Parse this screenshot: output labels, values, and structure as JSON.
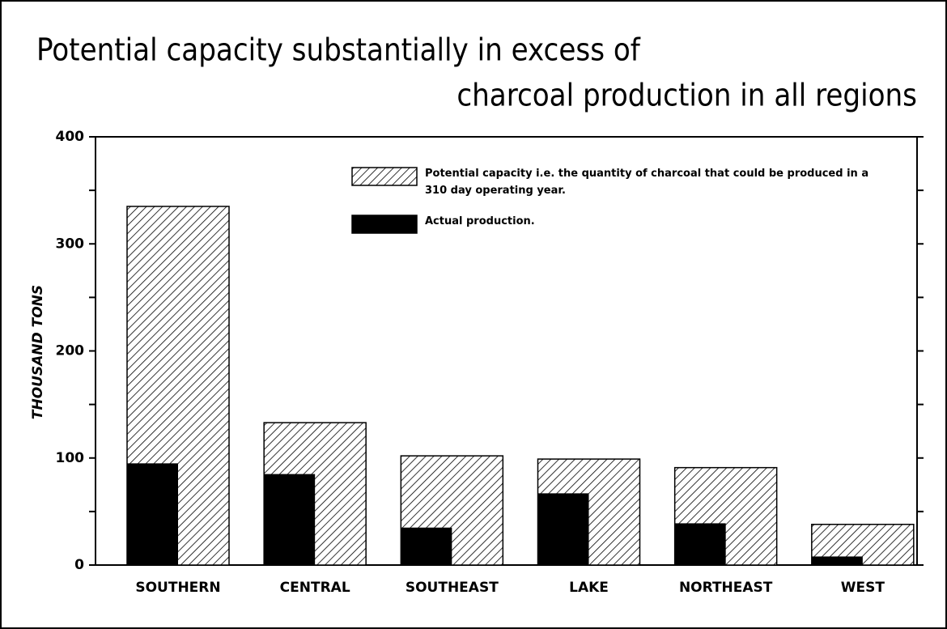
{
  "chart_data": {
    "type": "bar",
    "title": [
      "Potential capacity substantially in excess of",
      "charcoal production in all regions"
    ],
    "ylabel": "THOUSAND TONS",
    "categories": [
      "SOUTHERN",
      "CENTRAL",
      "SOUTHEAST",
      "LAKE",
      "NORTHEAST",
      "WEST"
    ],
    "series": [
      {
        "name": "Potential capacity i.e. the quantity of charcoal that could be produced in a 310 day operating year.",
        "color": "#000000",
        "hatch": true,
        "values": [
          335,
          133,
          102,
          99,
          91,
          38
        ]
      },
      {
        "name": "Actual production.",
        "color": "#000000",
        "hatch": false,
        "values": [
          95,
          85,
          35,
          67,
          39,
          8
        ]
      }
    ],
    "ylim": [
      0,
      400
    ],
    "yticks": [
      0,
      100,
      200,
      300,
      400
    ],
    "legend": "top-center"
  }
}
